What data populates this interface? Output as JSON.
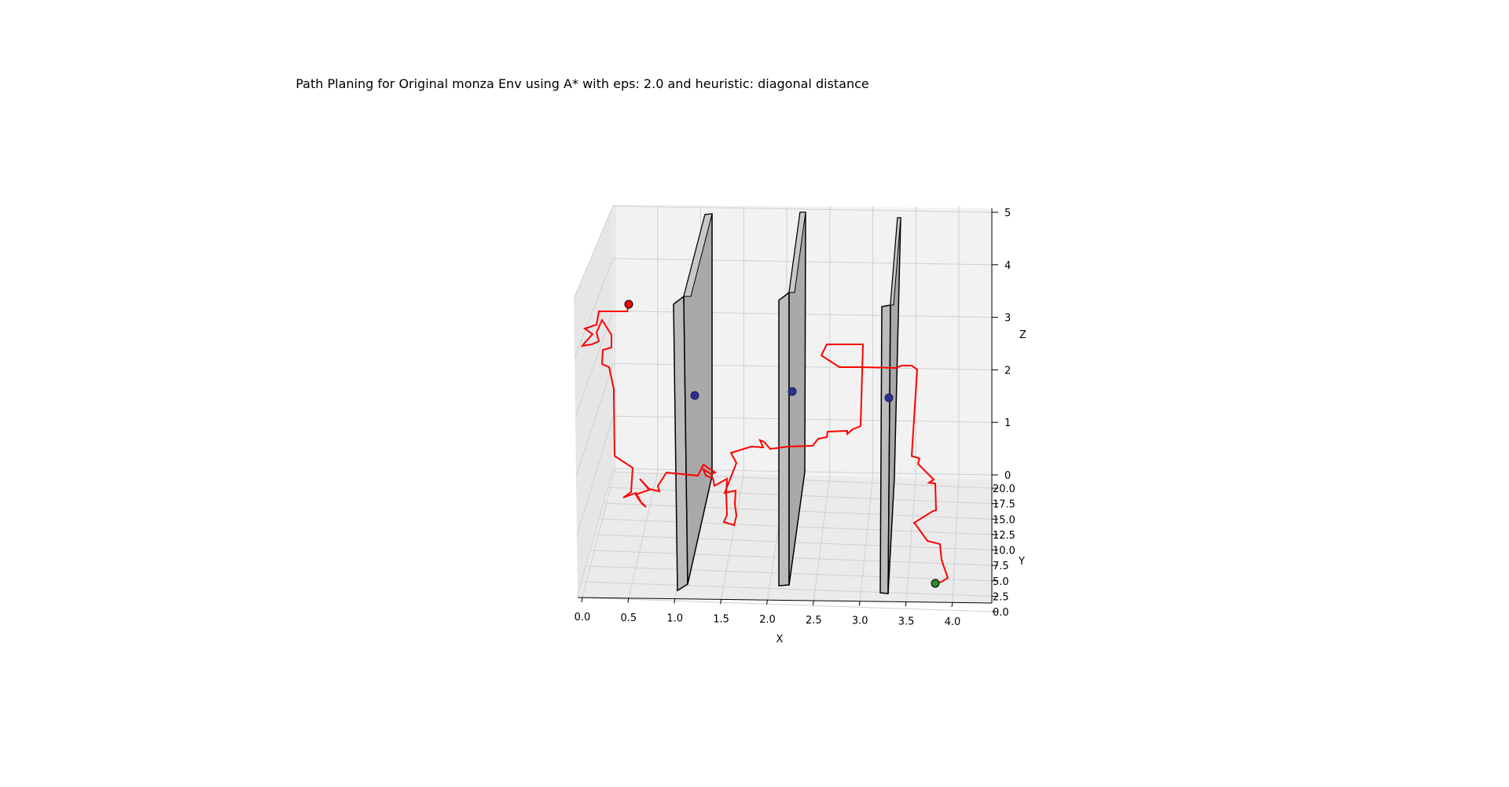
{
  "chart_data": {
    "type": "3d-path",
    "title": "Path Planing for Original monza Env using A* with eps: 2.0 and heuristic: diagonal distance",
    "xlabel": "X",
    "ylabel": "Y",
    "zlabel": "Z",
    "x_ticks": [
      "0.0",
      "0.5",
      "1.0",
      "1.5",
      "2.0",
      "2.5",
      "3.0",
      "3.5",
      "4.0"
    ],
    "y_ticks": [
      "0.0",
      "2.5",
      "5.0",
      "7.5",
      "10.0",
      "12.5",
      "15.0",
      "17.5",
      "20.0"
    ],
    "z_ticks": [
      "0",
      "1",
      "2",
      "3",
      "4",
      "5"
    ],
    "grid": true,
    "colors": {
      "path": "#ff0000",
      "start": "#ff0000",
      "goal": "#2e8b2e",
      "obstacle_fill": "#b8b8b8",
      "obstacle_edge": "#000000",
      "obstacle_center": "#2e3192",
      "pane": "#f2f2f2",
      "grid": "#d0d0d0"
    },
    "start": {
      "x": 0.5,
      "y": 2.5,
      "z": 3.0
    },
    "goal": {
      "x": 3.8,
      "y": 0.5,
      "z": 0.5
    },
    "obstacles": [
      {
        "name": "block-1",
        "x": [
          0.95,
          1.05
        ],
        "y": [
          0.0,
          19.5
        ],
        "z": [
          0.0,
          5.0
        ],
        "center": {
          "x": 1.0,
          "y": 10.0,
          "z": 2.5
        }
      },
      {
        "name": "block-2",
        "x": [
          2.05,
          2.15
        ],
        "y": [
          0.5,
          19.5
        ],
        "z": [
          0.0,
          5.0
        ],
        "center": {
          "x": 2.1,
          "y": 10.0,
          "z": 2.5
        }
      },
      {
        "name": "block-3",
        "x": [
          3.15,
          3.25
        ],
        "y": [
          0.0,
          19.5
        ],
        "z": [
          0.0,
          5.0
        ],
        "center": {
          "x": 3.2,
          "y": 10.0,
          "z": 2.5
        }
      }
    ]
  }
}
